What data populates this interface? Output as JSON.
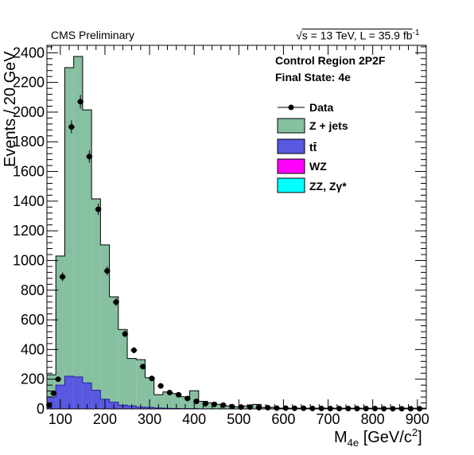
{
  "header": {
    "left": "CMS Preliminary",
    "sqrt_symbol": "√",
    "energy_text": "s = 13 TeV, L = 35.9 fb",
    "lumi_exp": "-1"
  },
  "annotations": {
    "region": "Control Region 2P2F",
    "final_state": "Final State: 4e"
  },
  "chart_data": {
    "type": "bar",
    "style": "stacked-histogram",
    "xlabel": {
      "base": "M",
      "sub": "4e",
      "unit_open": " [GeV/c",
      "unit_sup": "2",
      "unit_close": "]"
    },
    "ylabel": "Events / 20 GeV",
    "xlim": [
      70,
      920
    ],
    "ylim": [
      0,
      2450
    ],
    "xticks": [
      100,
      200,
      300,
      400,
      500,
      600,
      700,
      800,
      900
    ],
    "yticks": [
      0,
      200,
      400,
      600,
      800,
      1000,
      1200,
      1400,
      1600,
      1800,
      2000,
      2200,
      2400
    ],
    "bin_width": 20,
    "bin_low_edges": [
      70,
      90,
      110,
      130,
      150,
      170,
      190,
      210,
      230,
      250,
      270,
      290,
      310,
      330,
      350,
      370,
      390,
      410,
      430,
      450,
      470,
      490,
      510,
      530,
      550,
      570,
      590,
      610,
      630,
      650,
      670,
      690,
      710,
      730,
      750,
      770,
      790,
      810,
      830,
      850,
      870,
      890,
      910
    ],
    "series": [
      {
        "name": "Z + jets",
        "color": "#86c0a1",
        "values": [
          150,
          870,
          2080,
          2160,
          1840,
          1290,
          1040,
          710,
          510,
          320,
          320,
          200,
          90,
          110,
          100,
          80,
          120,
          50,
          40,
          30,
          20,
          15,
          20,
          30,
          10,
          10,
          5,
          5,
          5,
          5,
          5,
          5,
          5,
          5,
          5,
          5,
          5,
          5,
          5,
          5,
          5,
          5,
          5
        ]
      },
      {
        "name": "tt̄",
        "color": "#5858e0",
        "values": [
          80,
          160,
          220,
          215,
          175,
          125,
          65,
          45,
          25,
          20,
          12,
          10,
          6,
          4,
          3,
          2,
          2,
          1,
          1,
          1,
          0,
          0,
          0,
          0,
          0,
          0,
          0,
          0,
          0,
          0,
          0,
          0,
          0,
          0,
          0,
          0,
          0,
          0,
          0,
          0,
          0,
          0,
          0
        ]
      },
      {
        "name": "WZ",
        "color": "#ff00ff",
        "values": [
          0,
          0,
          0,
          0,
          0,
          0,
          0,
          0,
          0,
          0,
          0,
          0,
          0,
          0,
          0,
          0,
          0,
          0,
          0,
          0,
          0,
          0,
          0,
          0,
          0,
          0,
          0,
          0,
          0,
          0,
          0,
          0,
          0,
          0,
          0,
          0,
          0,
          0,
          0,
          0,
          0,
          0,
          0
        ]
      },
      {
        "name": "ZZ, Zγ*",
        "color": "#00ffff",
        "values": [
          0,
          0,
          0,
          0,
          0,
          0,
          0,
          0,
          0,
          0,
          0,
          0,
          0,
          0,
          0,
          0,
          0,
          0,
          0,
          0,
          0,
          0,
          0,
          0,
          0,
          0,
          0,
          0,
          0,
          0,
          0,
          0,
          0,
          0,
          0,
          0,
          0,
          0,
          0,
          0,
          0,
          0,
          0
        ]
      }
    ],
    "data": {
      "name": "Data",
      "x": [
        75,
        85,
        95,
        105,
        125,
        145,
        165,
        185,
        205,
        225,
        245,
        265,
        285,
        305,
        325,
        345,
        365,
        385,
        405,
        425,
        445,
        465,
        485,
        505,
        525,
        545,
        565,
        585,
        605,
        625,
        645,
        665,
        685,
        705,
        725,
        745,
        765,
        785,
        805,
        825,
        845,
        865,
        885,
        905
      ],
      "y": [
        25,
        105,
        200,
        890,
        1900,
        2070,
        1700,
        1345,
        930,
        720,
        505,
        395,
        285,
        205,
        155,
        110,
        95,
        70,
        50,
        35,
        30,
        25,
        15,
        12,
        12,
        8,
        8,
        5,
        5,
        4,
        4,
        3,
        3,
        2,
        2,
        2,
        2,
        2,
        2,
        1,
        1,
        1,
        1,
        1
      ],
      "err": [
        5,
        10,
        14,
        30,
        44,
        46,
        41,
        37,
        30,
        27,
        22,
        20,
        17,
        14,
        12,
        10,
        10,
        8,
        7,
        6,
        5,
        5,
        4,
        3,
        3,
        3,
        3,
        2,
        2,
        2,
        2,
        2,
        2,
        1,
        1,
        1,
        1,
        1,
        1,
        1,
        1,
        1,
        1,
        1
      ]
    }
  }
}
